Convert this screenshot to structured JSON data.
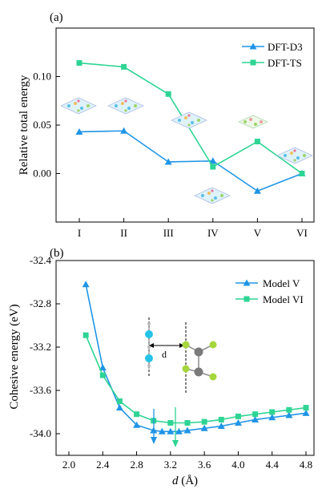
{
  "chart_data": [
    {
      "panel_label": "(a)",
      "type": "line",
      "xlabel": "",
      "ylabel": "Relative total energy",
      "categories": [
        "I",
        "II",
        "III",
        "IV",
        "V",
        "VI"
      ],
      "ylim": [
        -0.05,
        0.15
      ],
      "yticks": [
        "0.00",
        "0.05",
        "0.10"
      ],
      "ytick_values": [
        0,
        0.05,
        0.1
      ],
      "legend_position": "top-right",
      "series": [
        {
          "name": "DFT-D3",
          "marker": "triangle",
          "color": "#1f95e6",
          "values": [
            0.043,
            0.044,
            0.012,
            0.013,
            -0.018,
            0.0
          ]
        },
        {
          "name": "DFT-TS",
          "marker": "square",
          "color": "#2ed493",
          "values": [
            0.114,
            0.11,
            0.082,
            0.007,
            0.033,
            0.0
          ]
        }
      ]
    },
    {
      "panel_label": "(b)",
      "type": "line",
      "xlabel": "d (Å)",
      "xlabel_italic": "d",
      "xlabel_unit": "(Å)",
      "ylabel": "Cohesive energy (eV)",
      "xlim": [
        2.0,
        4.9
      ],
      "ylim": [
        -34.2,
        -32.4
      ],
      "xticks": [
        "2.0",
        "2.4",
        "2.8",
        "3.2",
        "3.6",
        "4.0",
        "4.4",
        "4.8"
      ],
      "xtick_values": [
        2.0,
        2.4,
        2.8,
        3.2,
        3.6,
        4.0,
        4.4,
        4.8
      ],
      "yticks": [
        "-32.4",
        "-32.8",
        "-33.2",
        "-33.6",
        "-34.0"
      ],
      "ytick_values": [
        -32.4,
        -32.8,
        -33.2,
        -33.6,
        -34.0
      ],
      "legend_position": "top-right",
      "inset_label": "d",
      "series": [
        {
          "name": "Model V",
          "marker": "triangle",
          "color": "#1f95e6",
          "x": [
            2.2,
            2.4,
            2.6,
            2.8,
            3.0,
            3.1,
            3.2,
            3.3,
            3.4,
            3.6,
            3.8,
            4.0,
            4.2,
            4.4,
            4.6,
            4.8
          ],
          "y": [
            -32.62,
            -33.39,
            -33.76,
            -33.92,
            -33.97,
            -33.98,
            -33.98,
            -33.98,
            -33.97,
            -33.95,
            -33.93,
            -33.9,
            -33.87,
            -33.85,
            -33.83,
            -33.81
          ]
        },
        {
          "name": "Model VI",
          "marker": "square",
          "color": "#2ed493",
          "x": [
            2.2,
            2.4,
            2.6,
            2.8,
            3.0,
            3.2,
            3.4,
            3.6,
            3.8,
            4.0,
            4.2,
            4.4,
            4.6,
            4.8
          ],
          "y": [
            -33.09,
            -33.46,
            -33.7,
            -33.82,
            -33.88,
            -33.9,
            -33.9,
            -33.89,
            -33.87,
            -33.84,
            -33.82,
            -33.8,
            -33.78,
            -33.76
          ]
        }
      ]
    }
  ]
}
